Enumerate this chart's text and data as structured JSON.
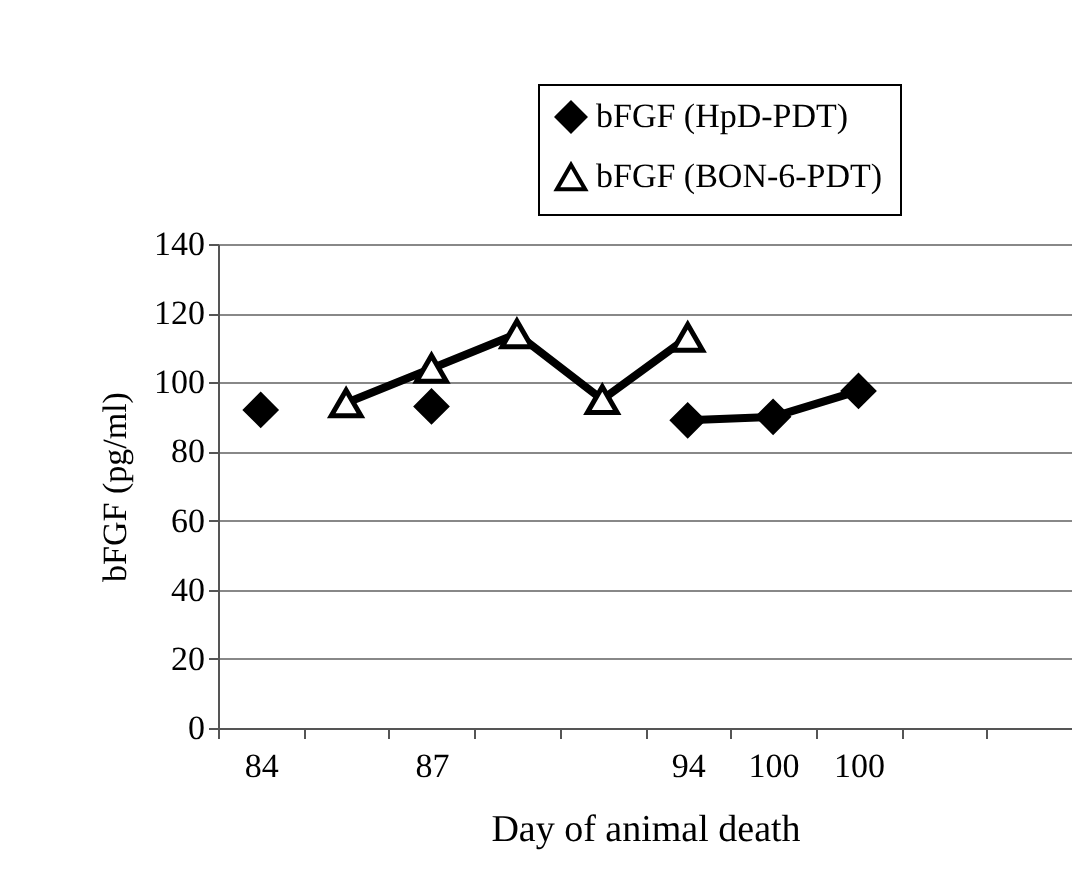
{
  "chart_data": {
    "type": "line",
    "xlabel": "Day of animal death",
    "ylabel": "bFGF (pg/ml)",
    "categories": [
      "84",
      null,
      "87",
      null,
      null,
      "94",
      "100",
      "100",
      null,
      null
    ],
    "series": [
      {
        "name": "bFGF (HpD-PDT)",
        "color": "#000000",
        "marker": "diamond",
        "values": [
          92,
          null,
          93,
          null,
          null,
          89,
          90,
          97.5,
          null,
          null
        ]
      },
      {
        "name": "bFGF (BON-6-PDT)",
        "color": "#000000",
        "marker": "triangle",
        "values": [
          null,
          94,
          104,
          114,
          95,
          113,
          null,
          null,
          null,
          null
        ]
      }
    ],
    "ylim": [
      0,
      140
    ],
    "yticks": [
      0,
      20,
      40,
      60,
      80,
      100,
      120,
      140
    ],
    "grid": "y",
    "legend": "top right",
    "line_style": "solid"
  }
}
